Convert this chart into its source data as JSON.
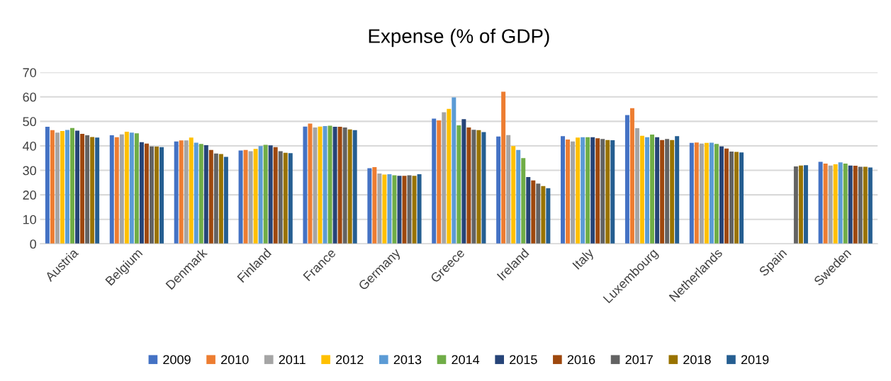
{
  "chart_data": {
    "type": "bar",
    "title": "Expense (% of GDP)",
    "categories": [
      "Austria",
      "Belgium",
      "Denmark",
      "Finland",
      "France",
      "Germany",
      "Greece",
      "Ireland",
      "Italy",
      "Luxembourg",
      "Netherlands",
      "Spain",
      "Sweden"
    ],
    "series": [
      {
        "name": "2009",
        "color": "#4472c4",
        "values": [
          47.8,
          44.3,
          41.8,
          38.1,
          47.9,
          30.9,
          51.1,
          43.8,
          44.0,
          52.6,
          41.2,
          null,
          33.5
        ]
      },
      {
        "name": "2010",
        "color": "#ed7d31",
        "values": [
          46.4,
          43.5,
          42.2,
          38.3,
          49.1,
          31.3,
          50.4,
          62.1,
          42.6,
          55.4,
          41.4,
          null,
          32.8
        ]
      },
      {
        "name": "2011",
        "color": "#a5a5a5",
        "values": [
          45.4,
          44.7,
          42.2,
          37.8,
          47.5,
          28.7,
          53.7,
          44.4,
          41.8,
          47.2,
          40.9,
          null,
          32.0
        ]
      },
      {
        "name": "2012",
        "color": "#ffc000",
        "values": [
          46.1,
          45.8,
          43.4,
          38.8,
          47.9,
          28.3,
          55.1,
          39.9,
          43.4,
          44.1,
          41.2,
          null,
          32.5
        ]
      },
      {
        "name": "2013",
        "color": "#5b9bd5",
        "values": [
          46.5,
          45.4,
          41.3,
          39.9,
          48.1,
          28.4,
          59.8,
          38.3,
          43.5,
          43.5,
          41.3,
          null,
          33.3
        ]
      },
      {
        "name": "2014",
        "color": "#70ad47",
        "values": [
          47.3,
          45.1,
          40.8,
          40.4,
          48.2,
          28.0,
          48.4,
          35.0,
          43.5,
          44.6,
          40.8,
          null,
          32.8
        ]
      },
      {
        "name": "2015",
        "color": "#264478",
        "values": [
          46.2,
          41.5,
          40.3,
          40.2,
          47.8,
          27.8,
          50.9,
          27.3,
          43.5,
          43.5,
          39.8,
          null,
          32.0
        ]
      },
      {
        "name": "2016",
        "color": "#9e480e",
        "values": [
          44.9,
          40.9,
          38.3,
          39.5,
          47.8,
          27.8,
          47.5,
          25.9,
          43.1,
          42.4,
          38.9,
          null,
          31.9
        ]
      },
      {
        "name": "2017",
        "color": "#636363",
        "values": [
          44.3,
          39.8,
          36.9,
          37.8,
          47.5,
          28.0,
          46.6,
          24.6,
          42.8,
          42.8,
          37.7,
          31.6,
          31.5
        ]
      },
      {
        "name": "2018",
        "color": "#997300",
        "values": [
          43.6,
          39.7,
          36.7,
          37.2,
          46.7,
          27.8,
          46.4,
          23.6,
          42.4,
          42.4,
          37.5,
          32.0,
          31.5
        ]
      },
      {
        "name": "2019",
        "color": "#255e91",
        "values": [
          43.4,
          39.5,
          35.5,
          37.0,
          46.4,
          28.4,
          45.6,
          22.7,
          42.3,
          44.0,
          37.3,
          32.1,
          31.2
        ]
      }
    ],
    "ylim": [
      0,
      70
    ],
    "yticks": [
      0,
      10,
      20,
      30,
      40,
      50,
      60,
      70
    ],
    "grid": "y",
    "legend": "bottom"
  }
}
